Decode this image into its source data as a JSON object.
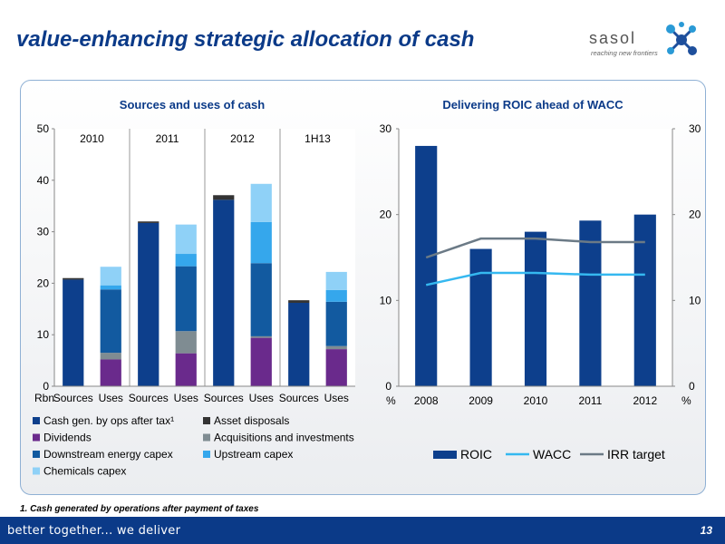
{
  "page": {
    "title": "value-enhancing strategic allocation of cash",
    "logo": {
      "name": "sasol",
      "tagline": "reaching new frontiers"
    },
    "footnote": "1. Cash generated by operations after payment of taxes",
    "footer": {
      "tagline": "better together... we deliver",
      "page_number": "13"
    }
  },
  "colors": {
    "cash_ops": "#0d3f8c",
    "asset_disposals": "#333333",
    "dividends": "#6a2a8c",
    "acquisitions": "#7f8c92",
    "downstream": "#125aa0",
    "upstream": "#35a7ec",
    "chemicals": "#8fd1f7",
    "roic": "#0d3f8c",
    "wacc": "#35b8f0",
    "irr": "#6b7a86"
  },
  "chart_data": [
    {
      "type": "bar",
      "stacked": true,
      "title": "Sources and uses of cash",
      "unit_label": "Rbn",
      "ylim": [
        0,
        50
      ],
      "yticks": [
        0,
        10,
        20,
        30,
        40,
        50
      ],
      "groups": [
        "2010",
        "2011",
        "2012",
        "1H13"
      ],
      "categories": [
        "Sources",
        "Uses",
        "Sources",
        "Uses",
        "Sources",
        "Uses",
        "Sources",
        "Uses"
      ],
      "series": [
        {
          "name": "Cash gen. by ops after tax¹",
          "color_key": "cash_ops",
          "values": [
            20.7,
            0,
            31.7,
            0,
            36.2,
            0,
            16.2,
            0
          ]
        },
        {
          "name": "Asset disposals",
          "color_key": "asset_disposals",
          "values": [
            0.3,
            0,
            0.3,
            0,
            0.9,
            0,
            0.5,
            0
          ]
        },
        {
          "name": "Dividends",
          "color_key": "dividends",
          "values": [
            0,
            5.2,
            0,
            6.4,
            0,
            9.4,
            0,
            7.2
          ]
        },
        {
          "name": "Acquisitions and investments",
          "color_key": "acquisitions",
          "values": [
            0,
            1.3,
            0,
            4.3,
            0,
            0.3,
            0,
            0.6
          ]
        },
        {
          "name": "Downstream energy capex",
          "color_key": "downstream",
          "values": [
            0,
            12.3,
            0,
            12.6,
            0,
            14.2,
            0,
            8.6
          ]
        },
        {
          "name": "Upstream capex",
          "color_key": "upstream",
          "values": [
            0,
            0.8,
            0,
            2.4,
            0,
            8.0,
            0,
            2.3
          ]
        },
        {
          "name": "Chemicals capex",
          "color_key": "chemicals",
          "values": [
            0,
            3.6,
            0,
            5.7,
            0,
            7.4,
            0,
            3.5
          ]
        }
      ],
      "legend": "bottom"
    },
    {
      "type": "bar",
      "title": "Delivering ROIC ahead of WACC",
      "unit_label_left": "%",
      "unit_label_right": "%",
      "ylim": [
        0,
        30
      ],
      "yticks": [
        0,
        10,
        20,
        30
      ],
      "categories": [
        "2008",
        "2009",
        "2010",
        "2011",
        "2012"
      ],
      "series": [
        {
          "name": "ROIC",
          "kind": "bar",
          "color_key": "roic",
          "values": [
            28,
            16,
            18,
            19.3,
            20
          ]
        },
        {
          "name": "WACC",
          "kind": "line",
          "color_key": "wacc",
          "values": [
            11.8,
            13.2,
            13.2,
            13,
            13
          ]
        },
        {
          "name": "IRR target",
          "kind": "line",
          "color_key": "irr",
          "values": [
            15,
            17.2,
            17.2,
            16.8,
            16.8
          ]
        }
      ],
      "legend": "bottom"
    }
  ]
}
